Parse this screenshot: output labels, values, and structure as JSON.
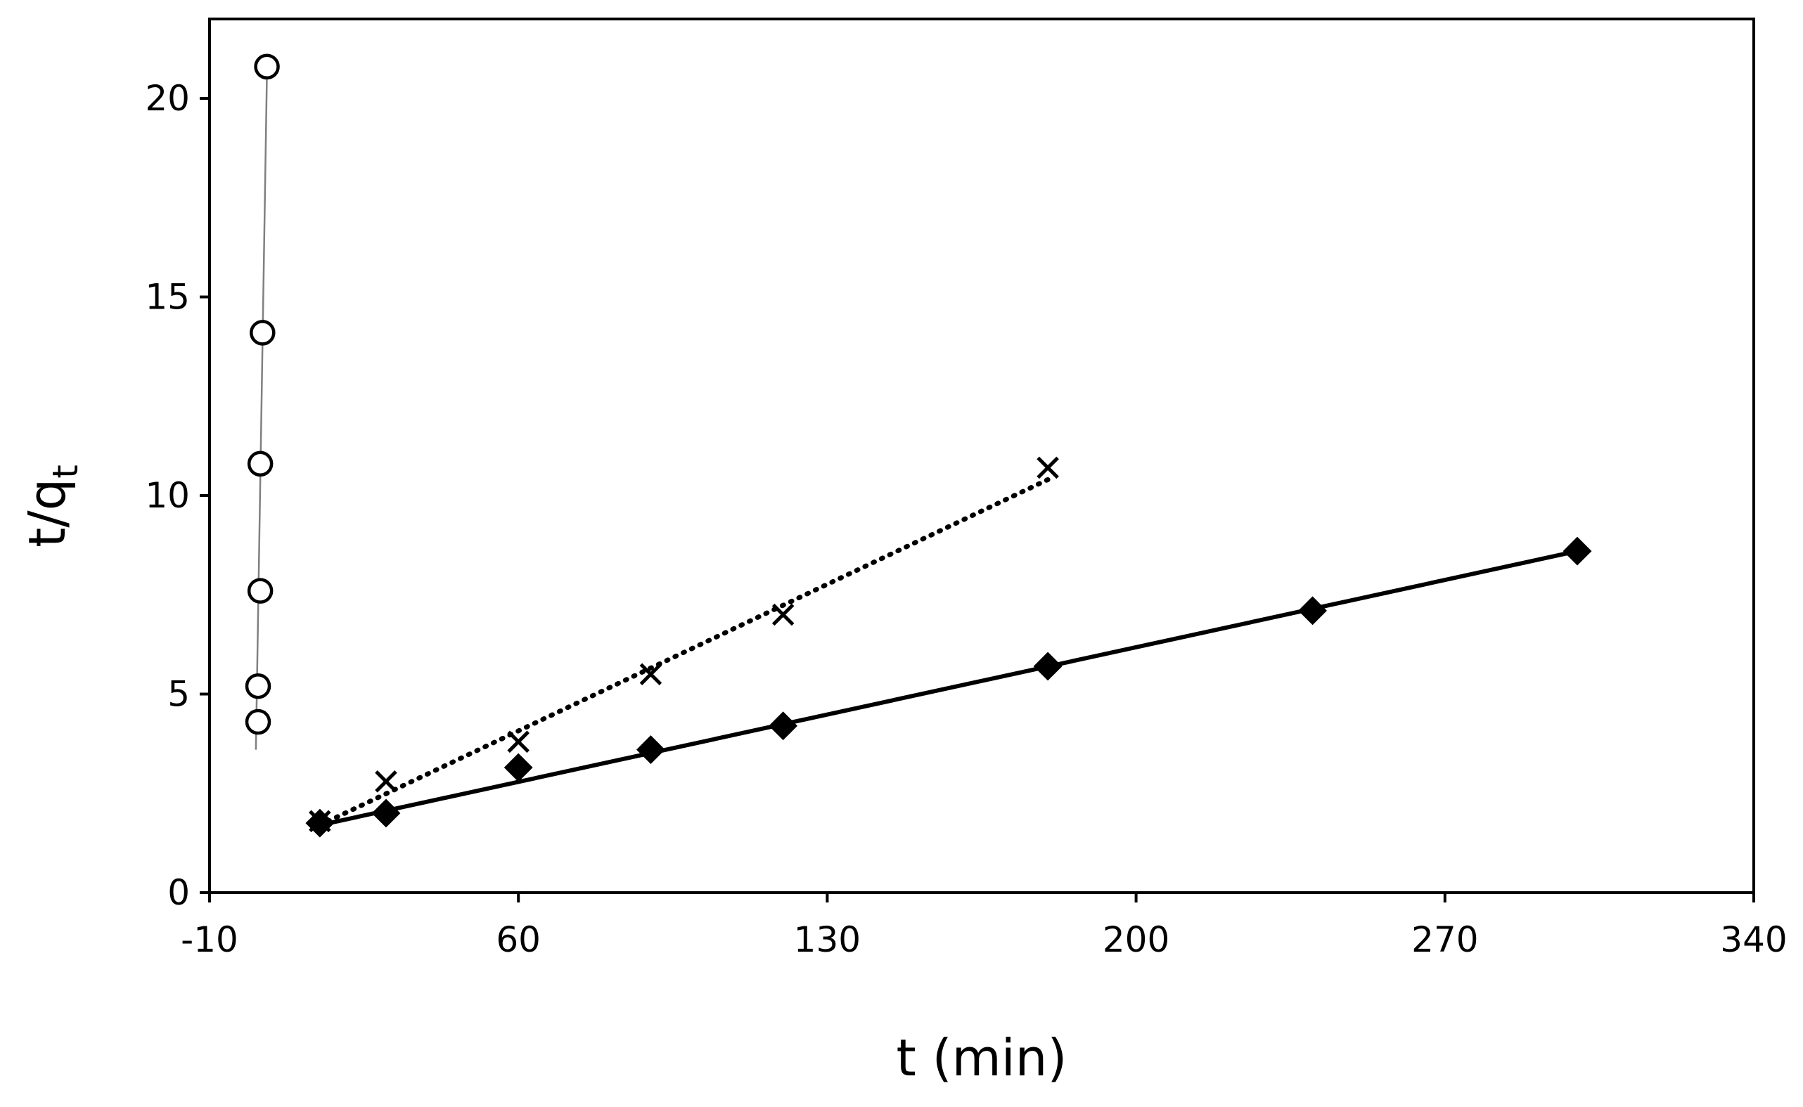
{
  "chart_data": {
    "type": "scatter",
    "title": "",
    "xlabel": "t (min)",
    "ylabel_main": "t/q",
    "ylabel_subscript": "t",
    "xlim": [
      -10,
      340
    ],
    "ylim": [
      0,
      22
    ],
    "xticks": [
      -10,
      60,
      130,
      200,
      270,
      340
    ],
    "yticks": [
      0,
      5,
      10,
      15,
      20
    ],
    "grid": false,
    "legend": "none",
    "series": [
      {
        "name": "open circles",
        "marker": "circle-open",
        "line": "thin-solid",
        "color": "#000000",
        "line_color": "#808080",
        "x": [
          1,
          1,
          1.5,
          1.5,
          2,
          3
        ],
        "y": [
          4.3,
          5.2,
          7.6,
          10.8,
          14.1,
          20.8
        ],
        "fit": {
          "x": [
            0.5,
            3
          ],
          "y": [
            3.6,
            20.6
          ]
        }
      },
      {
        "name": "crosses",
        "marker": "x",
        "line": "dotted",
        "color": "#000000",
        "x": [
          15,
          30,
          60,
          90,
          120,
          180
        ],
        "y": [
          1.8,
          2.8,
          3.8,
          5.5,
          7.0,
          10.7
        ],
        "fit": {
          "x": [
            15,
            180
          ],
          "y": [
            1.7,
            10.4
          ]
        }
      },
      {
        "name": "filled diamonds",
        "marker": "diamond-filled",
        "line": "solid",
        "color": "#000000",
        "x": [
          15,
          30,
          60,
          90,
          120,
          180,
          240,
          300
        ],
        "y": [
          1.75,
          2.0,
          3.15,
          3.6,
          4.2,
          5.7,
          7.1,
          8.6
        ],
        "fit": {
          "x": [
            15,
            300
          ],
          "y": [
            1.7,
            8.6
          ]
        }
      }
    ]
  }
}
